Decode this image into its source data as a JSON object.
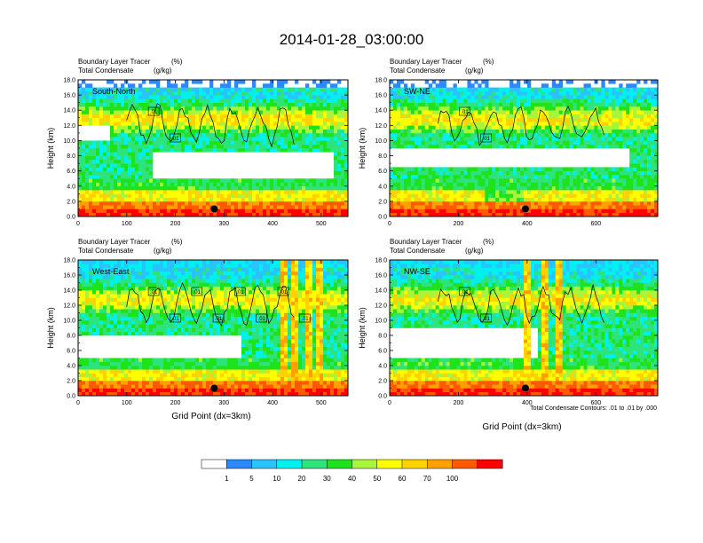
{
  "figure": {
    "title": "2014-01-28_03:00:00",
    "contour_note": "Total Condensate Contours: .01 to .01 by .000",
    "xlabel": "Grid Point (dx=3km)"
  },
  "colorbar": {
    "levels": [
      "1",
      "5",
      "10",
      "20",
      "30",
      "40",
      "50",
      "60",
      "70",
      "100"
    ],
    "colors": [
      "#ffffff",
      "#2b88ff",
      "#29c3ff",
      "#00f0f0",
      "#2de37c",
      "#1fe31a",
      "#a8f53a",
      "#ffff00",
      "#ffd200",
      "#ff9f00",
      "#ff5a00",
      "#ff0000"
    ]
  },
  "chart_data": [
    {
      "type": "heatmap",
      "panel": "South-North",
      "label1": "Boundary Layer Tracer",
      "unit1": "(%)",
      "label2": "Total Condensate",
      "unit2": "(g/kg)",
      "ylabel": "Height (km)",
      "xlim": [
        0,
        555
      ],
      "ylim": [
        0,
        18
      ],
      "xticks": [
        "0",
        "100",
        "200",
        "300",
        "400",
        "500"
      ],
      "yticks": [
        "0.0",
        "2.0",
        "4.0",
        "6.0",
        "8.0",
        "10.0",
        "12.0",
        "14.0",
        "16.0",
        "18.0"
      ],
      "contour_labels": [
        ".01",
        ".01"
      ],
      "marker": {
        "x": 280,
        "y": 1.0
      }
    },
    {
      "type": "heatmap",
      "panel": "SW-NE",
      "label1": "Boundary Layer Tracer",
      "unit1": "(%)",
      "label2": "Total Condensate",
      "unit2": "(g/kg)",
      "ylabel": "Height (km)",
      "xlim": [
        0,
        780
      ],
      "ylim": [
        0,
        18
      ],
      "xticks": [
        "0",
        "200",
        "400",
        "600"
      ],
      "yticks": [
        "0.0",
        "2.0",
        "4.0",
        "6.0",
        "8.0",
        "10.0",
        "12.0",
        "14.0",
        "16.0",
        "18.0"
      ],
      "contour_labels": [
        ".01",
        ".01"
      ],
      "marker": {
        "x": 395,
        "y": 1.0
      }
    },
    {
      "type": "heatmap",
      "panel": "West-East",
      "label1": "Boundary Layer Tracer",
      "unit1": "(%)",
      "label2": "Total Condensate",
      "unit2": "(g/kg)",
      "ylabel": "Height (km)",
      "xlim": [
        0,
        555
      ],
      "ylim": [
        0,
        18
      ],
      "xticks": [
        "0",
        "100",
        "200",
        "300",
        "400",
        "500"
      ],
      "yticks": [
        "0.0",
        "2.0",
        "4.0",
        "6.0",
        "8.0",
        "10.0",
        "12.0",
        "14.0",
        "16.0",
        "18.0"
      ],
      "contour_labels": [
        ".01",
        ".01",
        ".01",
        ".01",
        ".01",
        ".01",
        ".01",
        ".01"
      ],
      "marker": {
        "x": 280,
        "y": 1.0
      }
    },
    {
      "type": "heatmap",
      "panel": "NW-SE",
      "label1": "Boundary Layer Tracer",
      "unit1": "(%)",
      "label2": "Total Condensate",
      "unit2": "(g/kg)",
      "ylabel": "Height (km)",
      "xlim": [
        0,
        780
      ],
      "ylim": [
        0,
        18
      ],
      "xticks": [
        "0",
        "200",
        "400",
        "600"
      ],
      "yticks": [
        "0.0",
        "2.0",
        "4.0",
        "6.0",
        "8.0",
        "10.0",
        "12.0",
        "14.0",
        "16.0",
        "18.0"
      ],
      "contour_labels": [
        ".01",
        ".01"
      ],
      "marker": {
        "x": 395,
        "y": 1.0
      }
    }
  ]
}
